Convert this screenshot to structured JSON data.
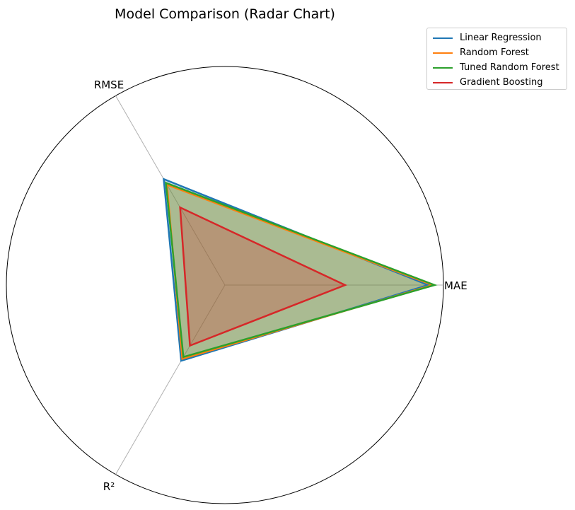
{
  "chart_data": {
    "type": "radar",
    "title": "Model Comparison (Radar Chart)",
    "axes": [
      "MAE",
      "RMSE",
      "R²"
    ],
    "rmax": 1.0,
    "grid": true,
    "legend_position": "top-right",
    "series": [
      {
        "name": "Linear Regression",
        "color": "#1f77b4",
        "values": [
          0.93,
          0.56,
          0.4
        ]
      },
      {
        "name": "Random Forest",
        "color": "#ff7f0e",
        "values": [
          0.95,
          0.53,
          0.39
        ]
      },
      {
        "name": "Tuned Random Forest",
        "color": "#2ca02c",
        "values": [
          0.96,
          0.54,
          0.38
        ]
      },
      {
        "name": "Gradient Boosting",
        "color": "#d62728",
        "values": [
          0.55,
          0.41,
          0.32
        ]
      }
    ]
  }
}
